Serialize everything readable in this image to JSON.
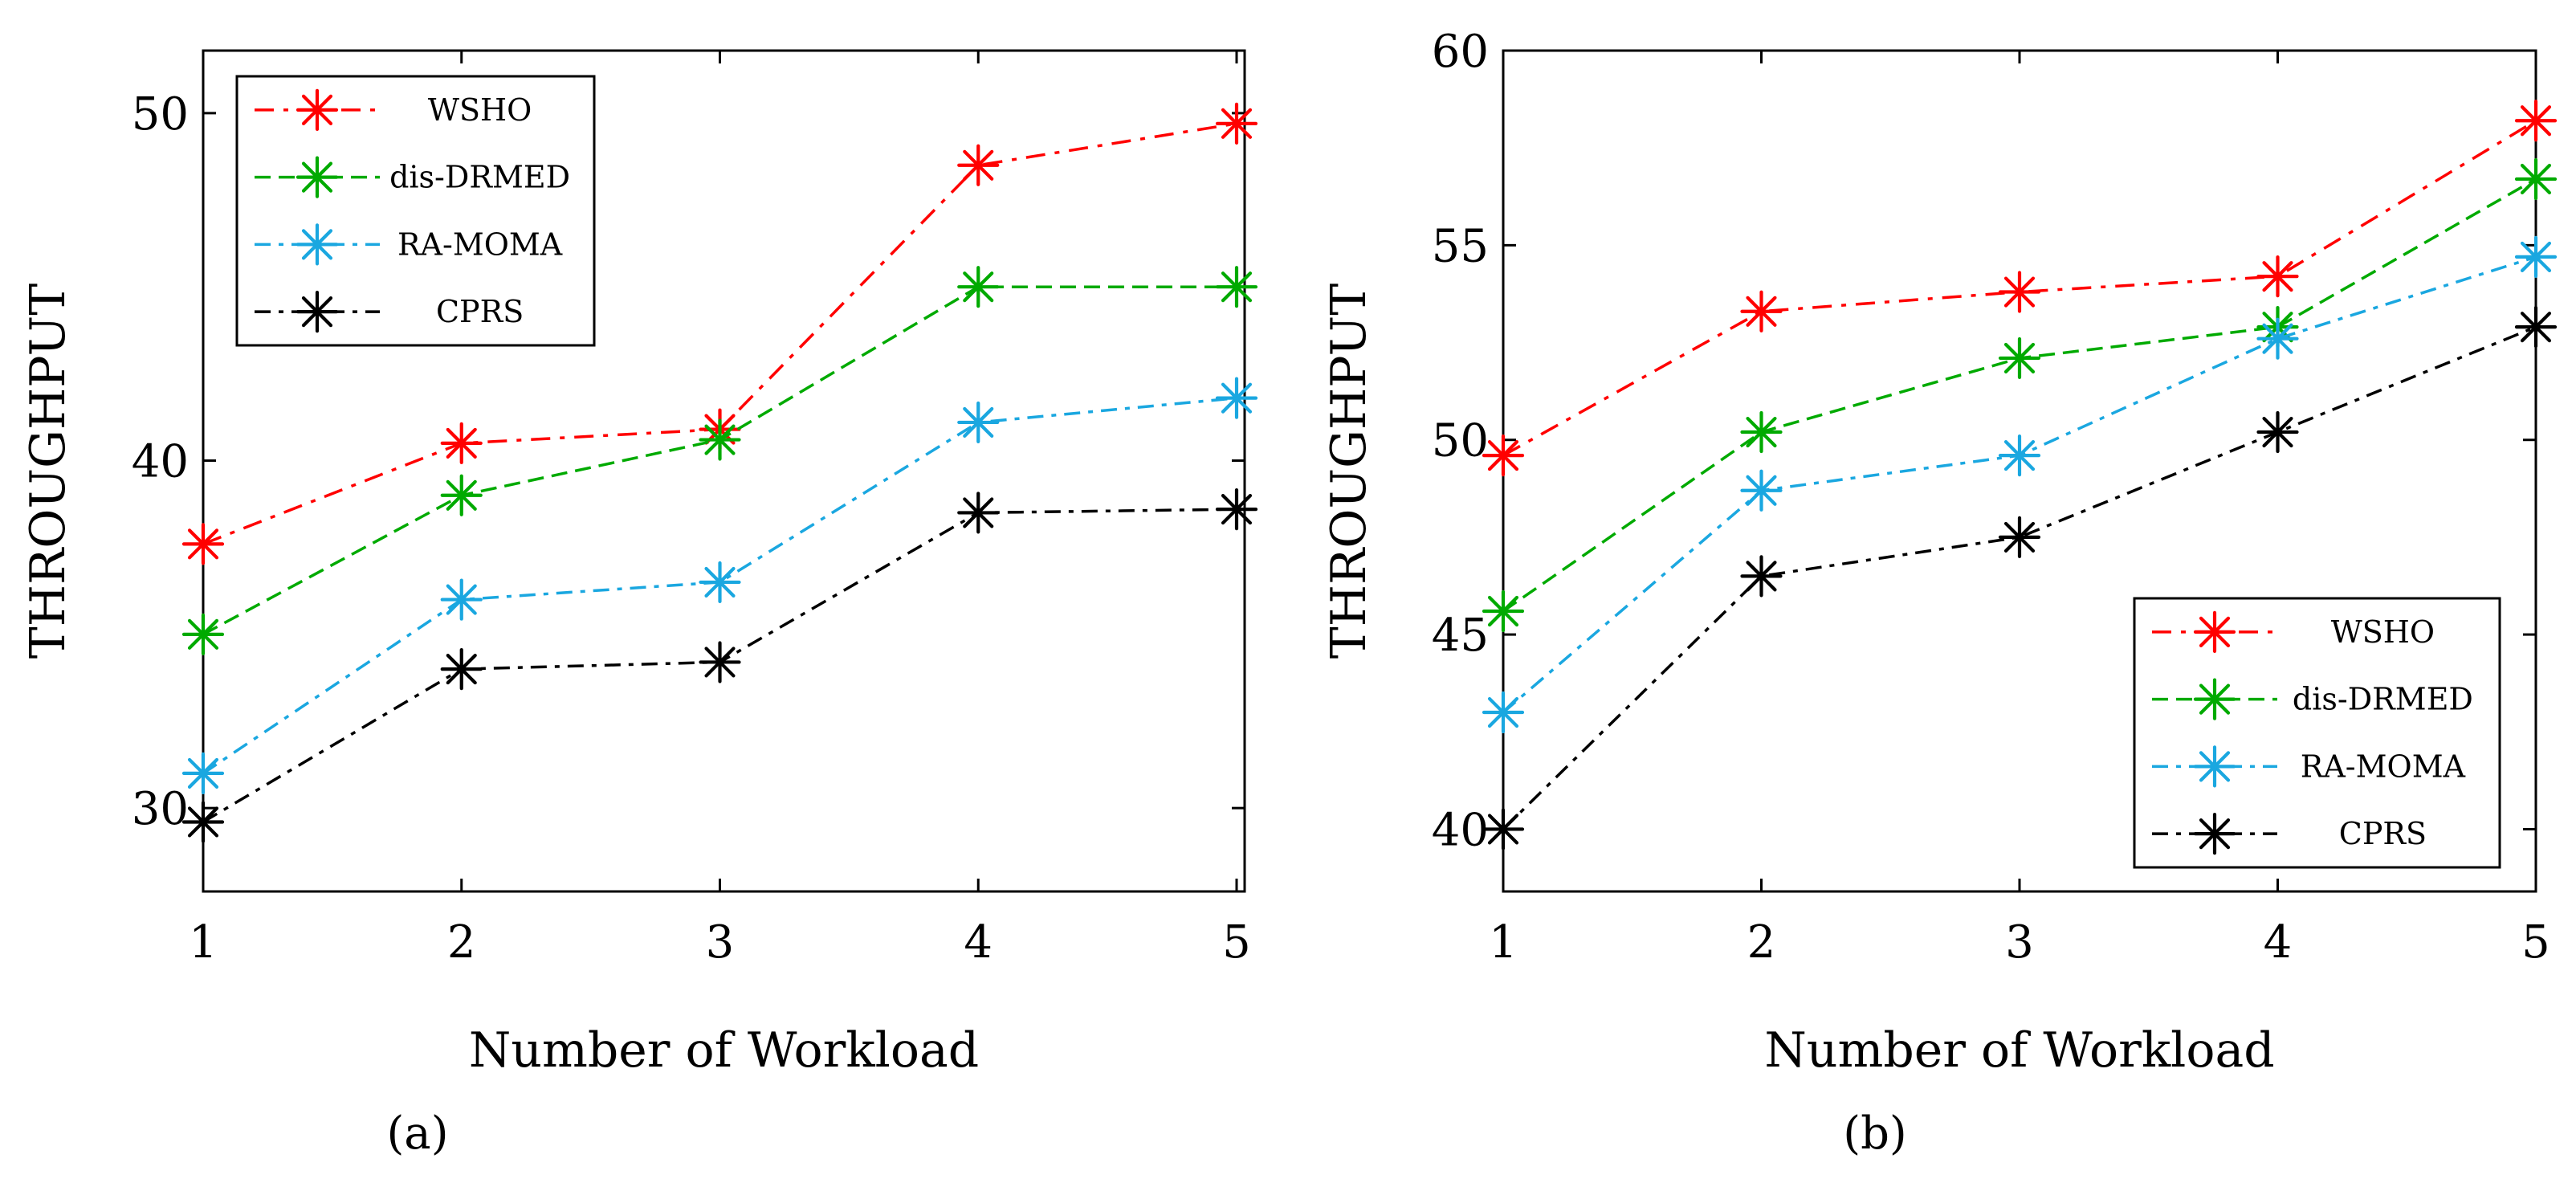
{
  "figure_captions": [
    "(a)",
    "(b)"
  ],
  "chart_data": [
    {
      "type": "line",
      "caption": "(a)",
      "xlabel": "Number of Workload",
      "ylabel": "THROUGHPUT",
      "x": [
        1,
        2,
        3,
        4,
        5
      ],
      "xlim": [
        1,
        5
      ],
      "ylim": [
        27.6,
        51.8
      ],
      "xticks": [
        1,
        2,
        3,
        4,
        5
      ],
      "yticks": [
        30,
        40,
        50
      ],
      "legend_position": "top-left",
      "series": [
        {
          "name": "WSHO",
          "color": "#ff0000",
          "values": [
            37.6,
            40.5,
            40.9,
            48.5,
            49.7
          ]
        },
        {
          "name": "dis-DRMED",
          "color": "#00aa00",
          "values": [
            35.0,
            39.0,
            40.6,
            45.0,
            45.0
          ]
        },
        {
          "name": "RA-MOMA",
          "color": "#1aa7e0",
          "values": [
            31.0,
            36.0,
            36.5,
            41.1,
            41.8
          ]
        },
        {
          "name": "CPRS",
          "color": "#000000",
          "values": [
            29.6,
            34.0,
            34.2,
            38.5,
            38.6
          ]
        }
      ]
    },
    {
      "type": "line",
      "caption": "(b)",
      "xlabel": "Number of Workload",
      "ylabel": "THROUGHPUT",
      "x": [
        1,
        2,
        3,
        4,
        5
      ],
      "xlim": [
        1,
        5
      ],
      "ylim": [
        38.4,
        60
      ],
      "xticks": [
        1,
        2,
        3,
        4,
        5
      ],
      "yticks": [
        40,
        45,
        50,
        55,
        60
      ],
      "legend_position": "bottom-right",
      "series": [
        {
          "name": "WSHO",
          "color": "#ff0000",
          "values": [
            49.6,
            53.3,
            53.8,
            54.2,
            58.2
          ]
        },
        {
          "name": "dis-DRMED",
          "color": "#00aa00",
          "values": [
            45.6,
            50.2,
            52.1,
            52.9,
            56.7
          ]
        },
        {
          "name": "RA-MOMA",
          "color": "#1aa7e0",
          "values": [
            43.0,
            48.7,
            49.6,
            52.6,
            54.7
          ]
        },
        {
          "name": "CPRS",
          "color": "#000000",
          "values": [
            40.0,
            46.5,
            47.5,
            50.2,
            52.9
          ]
        }
      ]
    }
  ]
}
